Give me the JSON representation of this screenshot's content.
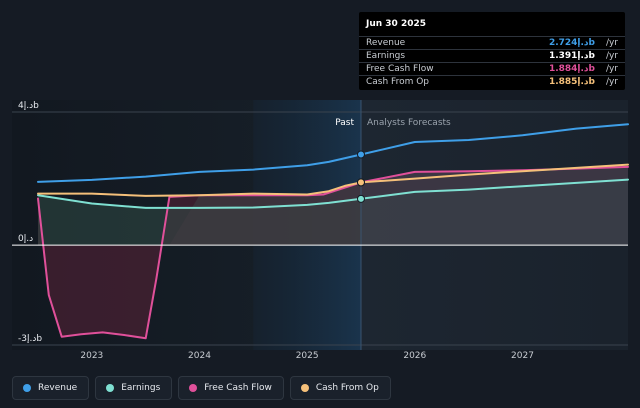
{
  "chart_data": {
    "type": "line",
    "y_axis": {
      "ticks": [
        {
          "value": 4,
          "label": "4د.إb"
        },
        {
          "value": 0,
          "label": "0د.إ"
        },
        {
          "value": -3,
          "label": "-3د.إb"
        }
      ],
      "ylim": [
        -3,
        4
      ]
    },
    "x_axis": {
      "ticks": [
        {
          "value": 2023,
          "label": "2023"
        },
        {
          "value": 2024,
          "label": "2024"
        },
        {
          "value": 2025,
          "label": "2025"
        },
        {
          "value": 2026,
          "label": "2026"
        },
        {
          "value": 2027,
          "label": "2027"
        }
      ],
      "xlim": [
        2022.5,
        2027.98
      ]
    },
    "split_x": 2025.5,
    "highlight_start_x": 2024.5,
    "past_label": "Past",
    "forecast_label": "Analysts Forecasts",
    "series": [
      {
        "key": "revenue",
        "name": "Revenue",
        "color": "#3f9fe8",
        "points": [
          [
            2022.5,
            1.9
          ],
          [
            2023.0,
            1.96
          ],
          [
            2023.5,
            2.06
          ],
          [
            2024.0,
            2.2
          ],
          [
            2024.5,
            2.27
          ],
          [
            2025.0,
            2.4
          ],
          [
            2025.2,
            2.5
          ],
          [
            2025.5,
            2.724
          ],
          [
            2026.0,
            3.1
          ],
          [
            2026.5,
            3.16
          ],
          [
            2027.0,
            3.3
          ],
          [
            2027.5,
            3.5
          ],
          [
            2027.98,
            3.63
          ]
        ]
      },
      {
        "key": "earnings",
        "name": "Earnings",
        "color": "#7fe0d2",
        "points": [
          [
            2022.5,
            1.5
          ],
          [
            2023.0,
            1.25
          ],
          [
            2023.5,
            1.12
          ],
          [
            2024.0,
            1.12
          ],
          [
            2024.5,
            1.13
          ],
          [
            2025.0,
            1.21
          ],
          [
            2025.2,
            1.27
          ],
          [
            2025.5,
            1.391
          ],
          [
            2026.0,
            1.6
          ],
          [
            2026.5,
            1.67
          ],
          [
            2027.0,
            1.77
          ],
          [
            2027.5,
            1.87
          ],
          [
            2027.98,
            1.97
          ]
        ]
      },
      {
        "key": "fcf",
        "name": "Free Cash Flow",
        "color": "#e0509a",
        "points": [
          [
            2022.5,
            1.4
          ],
          [
            2022.6,
            -1.5
          ],
          [
            2022.72,
            -2.75
          ],
          [
            2022.9,
            -2.68
          ],
          [
            2023.1,
            -2.62
          ],
          [
            2023.3,
            -2.7
          ],
          [
            2023.5,
            -2.8
          ],
          [
            2023.6,
            -1.0
          ],
          [
            2023.72,
            1.45
          ],
          [
            2024.0,
            1.5
          ],
          [
            2024.5,
            1.5
          ],
          [
            2025.0,
            1.5
          ],
          [
            2025.15,
            1.52
          ],
          [
            2025.5,
            1.884
          ],
          [
            2026.0,
            2.2
          ],
          [
            2026.5,
            2.22
          ],
          [
            2027.0,
            2.25
          ],
          [
            2027.5,
            2.3
          ],
          [
            2027.98,
            2.35
          ]
        ]
      },
      {
        "key": "cfo",
        "name": "Cash From Op",
        "color": "#f5c07a",
        "points": [
          [
            2022.5,
            1.55
          ],
          [
            2023.0,
            1.55
          ],
          [
            2023.5,
            1.48
          ],
          [
            2024.0,
            1.5
          ],
          [
            2024.5,
            1.55
          ],
          [
            2025.0,
            1.52
          ],
          [
            2025.2,
            1.62
          ],
          [
            2025.35,
            1.78
          ],
          [
            2025.5,
            1.885
          ],
          [
            2026.0,
            2.0
          ],
          [
            2026.5,
            2.12
          ],
          [
            2027.0,
            2.22
          ],
          [
            2027.5,
            2.32
          ],
          [
            2027.98,
            2.42
          ]
        ]
      }
    ],
    "legend_placement": "bottom-left"
  },
  "tooltip": {
    "date": "Jun 30 2025",
    "rows": [
      {
        "label": "Revenue",
        "value": "2.724د.إb",
        "unit": "/yr",
        "color": "#3f9fe8"
      },
      {
        "label": "Earnings",
        "value": "1.391د.إb",
        "unit": "/yr",
        "color": "#7fe0d2"
      },
      {
        "label": "Free Cash Flow",
        "value": "1.884د.إb",
        "unit": "/yr",
        "color": "#e0509a"
      },
      {
        "label": "Cash From Op",
        "value": "1.885د.إb",
        "unit": "/yr",
        "color": "#f5c07a"
      }
    ]
  },
  "legend": [
    {
      "label": "Revenue",
      "color": "#3f9fe8"
    },
    {
      "label": "Earnings",
      "color": "#7fe0d2"
    },
    {
      "label": "Free Cash Flow",
      "color": "#e0509a"
    },
    {
      "label": "Cash From Op",
      "color": "#f5c07a"
    }
  ]
}
